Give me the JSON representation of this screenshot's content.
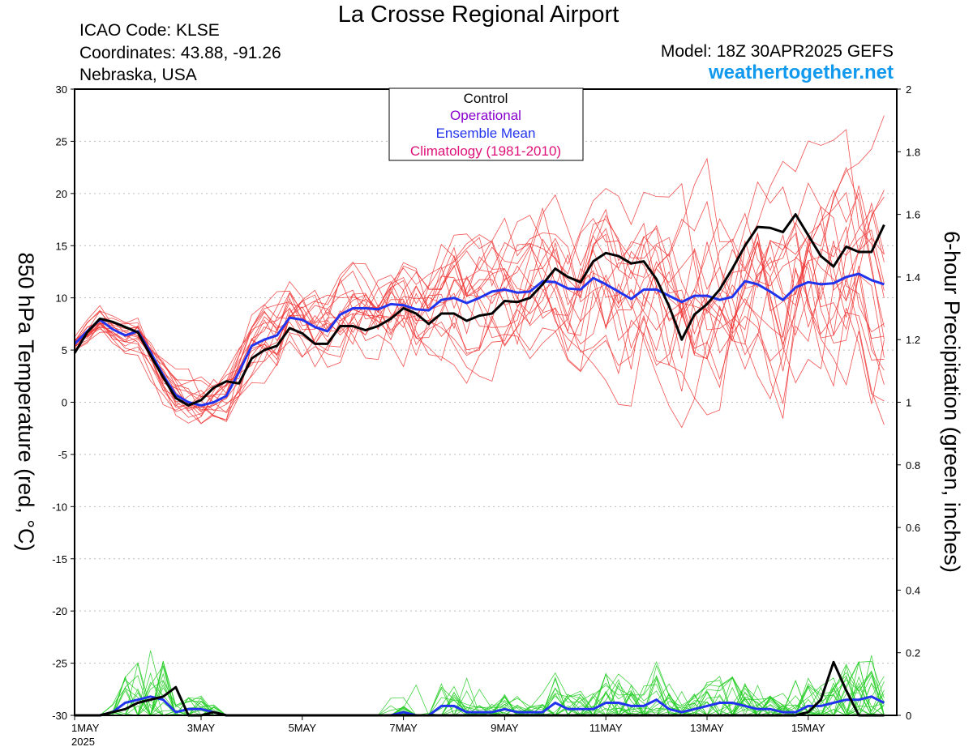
{
  "header": {
    "title": "La Crosse Regional Airport",
    "icao": "ICAO Code: KLSE",
    "coordinates": "Coordinates: 43.88, -91.26",
    "location": "Nebraska, USA",
    "model": "Model: 18Z 30APR2025 GEFS",
    "site": "weathertogether.net"
  },
  "colors": {
    "temperature_members": "#ee3333",
    "precip_members": "#22cc22",
    "control": "#000000",
    "operational": "#8800cc",
    "ensemble_mean": "#2233ee",
    "climatology": "#dd1177",
    "site": "#1199ee"
  },
  "chart_data": {
    "type": "line",
    "ylabel": "850 hPa Temperature (red, °C)",
    "y2label": "6-hour Precipitation (green, inches)",
    "ylim": [
      -30,
      30
    ],
    "y2lim": [
      0,
      2
    ],
    "y_ticks": [
      -30,
      -25,
      -20,
      -15,
      -10,
      -5,
      0,
      5,
      10,
      15,
      20,
      25,
      30
    ],
    "y2_ticks": [
      0,
      0.2,
      0.4,
      0.6,
      0.8,
      1,
      1.2,
      1.4,
      1.6,
      1.8,
      2
    ],
    "x_ticks": [
      {
        "t": 0,
        "label": "1MAY",
        "sub": "2025"
      },
      {
        "t": 2.5,
        "label": "3MAY"
      },
      {
        "t": 4.5,
        "label": "5MAY"
      },
      {
        "t": 6.5,
        "label": "7MAY"
      },
      {
        "t": 8.5,
        "label": "9MAY"
      },
      {
        "t": 10.5,
        "label": "11MAY"
      },
      {
        "t": 12.5,
        "label": "13MAY"
      },
      {
        "t": 14.5,
        "label": "15MAY"
      }
    ],
    "x_range_days": [
      0,
      16.25
    ],
    "step_days": 0.25,
    "grid": true,
    "legend": {
      "position": "top-center",
      "entries": [
        "Control",
        "Operational",
        "Ensemble Mean",
        "Climatology (1981-2010)"
      ]
    },
    "control_temperature": [
      4.7,
      6.7,
      8.0,
      7.7,
      7.2,
      6.7,
      4.5,
      2.4,
      0.4,
      -0.3,
      0.2,
      1.4,
      2.0,
      1.8,
      4.2,
      5.0,
      5.4,
      7.1,
      6.6,
      5.6,
      5.6,
      7.3,
      7.3,
      6.9,
      7.3,
      8.0,
      9.0,
      8.5,
      7.5,
      8.5,
      8.5,
      7.8,
      8.3,
      8.5,
      9.7,
      9.6,
      10.0,
      11.3,
      12.8,
      12.0,
      11.5,
      13.5,
      14.3,
      14.0,
      13.3,
      13.5,
      11.8,
      9.2,
      6.0,
      8.4,
      9.4,
      10.8,
      12.8,
      15.0,
      16.8,
      16.7,
      16.3,
      18.0,
      16.0,
      14.0,
      13.0,
      14.9,
      14.4,
      14.4,
      17.0
    ],
    "ensemble_mean_temperature": [
      5.6,
      6.8,
      7.9,
      7.0,
      6.4,
      6.8,
      4.8,
      2.6,
      0.7,
      0.0,
      -0.3,
      0.0,
      0.6,
      2.9,
      5.4,
      6.0,
      6.4,
      8.1,
      7.9,
      7.2,
      6.8,
      8.4,
      9.0,
      9.0,
      8.9,
      9.4,
      9.3,
      8.9,
      8.8,
      9.8,
      10.0,
      9.5,
      10.0,
      10.6,
      10.8,
      10.5,
      10.6,
      11.6,
      11.5,
      10.9,
      10.8,
      11.9,
      11.3,
      10.6,
      9.9,
      10.8,
      10.8,
      10.2,
      9.6,
      10.2,
      10.2,
      9.8,
      10.1,
      11.6,
      11.3,
      10.6,
      9.8,
      11.0,
      11.5,
      11.3,
      11.4,
      12.0,
      12.3,
      11.7,
      11.3
    ],
    "control_precip": [
      0,
      0,
      0,
      0.01,
      0.02,
      0.04,
      0.05,
      0.06,
      0.09,
      0,
      0,
      0.01,
      0,
      0,
      0,
      0,
      0,
      0,
      0,
      0,
      0,
      0,
      0,
      0,
      0,
      0,
      0,
      0,
      0,
      0,
      0,
      0,
      0,
      0,
      0,
      0,
      0,
      0,
      0,
      0,
      0,
      0,
      0,
      0,
      0,
      0,
      0,
      0,
      0,
      0,
      0,
      0,
      0,
      0,
      0,
      0,
      0,
      0,
      0.01,
      0.05,
      0.17,
      0.08,
      0,
      0,
      0
    ],
    "ensemble_mean_precip": [
      0,
      0,
      0,
      0.01,
      0.04,
      0.05,
      0.06,
      0.05,
      0.01,
      0.02,
      0.02,
      0.01,
      0,
      0,
      0,
      0,
      0,
      0,
      0,
      0,
      0,
      0,
      0,
      0,
      0,
      0,
      0.01,
      0,
      0,
      0.03,
      0.03,
      0.01,
      0.01,
      0.01,
      0.02,
      0.01,
      0.01,
      0.01,
      0.04,
      0.02,
      0.02,
      0.02,
      0.04,
      0.04,
      0.03,
      0.03,
      0.05,
      0.02,
      0.01,
      0.02,
      0.03,
      0.04,
      0.04,
      0.03,
      0.02,
      0.02,
      0.01,
      0.01,
      0.03,
      0.03,
      0.04,
      0.05,
      0.05,
      0.06,
      0.04
    ]
  }
}
